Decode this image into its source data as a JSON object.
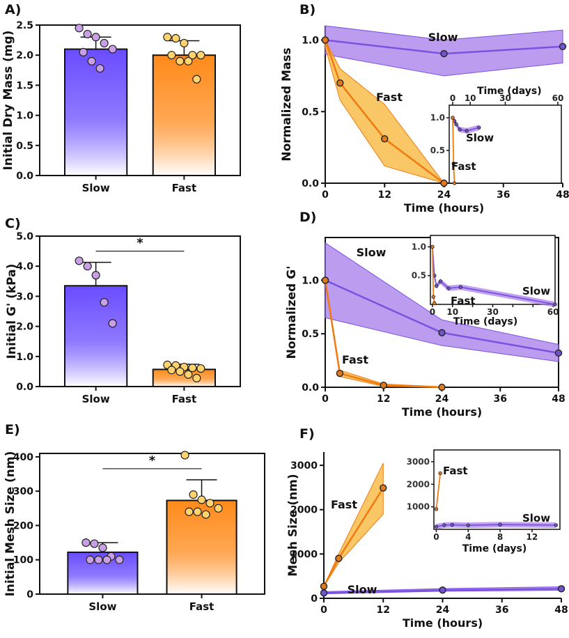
{
  "colors": {
    "slow": "#6A4CFF",
    "slowLine": "#7B52E0",
    "slowBand": "#A57BEA",
    "slowDot": "#C9A0E8",
    "fast": "#FF8A1A",
    "fastLine": "#F07A10",
    "fastBand": "#F8B93E",
    "fastDot": "#FFD36E"
  },
  "chart_data": [
    {
      "panel": "A)",
      "type": "bar",
      "categories": [
        "Slow",
        "Fast"
      ],
      "ylabel": "Initial Dry Mass (mg)",
      "ylim": [
        0,
        2.5
      ],
      "yticks": [
        0,
        0.5,
        1.0,
        1.5,
        2.0,
        2.5
      ],
      "ytick_labels": [
        "0.0",
        "0.5",
        "1.0",
        "1.5",
        "2.0",
        "2.5"
      ],
      "values": [
        2.1,
        2.0
      ],
      "errors": [
        0.2,
        0.24
      ],
      "points": [
        [
          2.45,
          2.35,
          2.3,
          2.2,
          2.1,
          2.05,
          1.9,
          1.78
        ],
        [
          2.3,
          2.28,
          2.2,
          2.0,
          2.0,
          2.0,
          1.9,
          1.9,
          1.6
        ]
      ],
      "significance": null
    },
    {
      "panel": "B)",
      "type": "line",
      "xlabel": "Time (hours)",
      "ylabel": "Normalized Mass",
      "xlim": [
        0,
        48
      ],
      "xticks": [
        0,
        12,
        24,
        36,
        48
      ],
      "ylim": [
        0,
        1.1
      ],
      "yticks": [
        0,
        0.5,
        1.0
      ],
      "ytick_labels": [
        "0.0",
        "0.5",
        "1.0"
      ],
      "series": [
        {
          "name": "Slow",
          "x": [
            0,
            24,
            48
          ],
          "y": [
            1.0,
            0.905,
            0.955
          ],
          "upper": [
            1.1,
            1.0,
            1.07
          ],
          "lower": [
            0.9,
            0.75,
            0.84
          ]
        },
        {
          "name": "Fast",
          "x": [
            0,
            3,
            12,
            24
          ],
          "y": [
            1.0,
            0.7,
            0.31,
            0.0
          ],
          "upper": [
            1.0,
            0.8,
            0.55,
            0.0
          ],
          "lower": [
            0.95,
            0.58,
            0.12,
            0.0
          ]
        }
      ],
      "inset": {
        "xlabel": "Time (days)",
        "xticks": [
          0,
          10,
          30,
          60
        ],
        "yticks": [
          0.5,
          1.0
        ],
        "ytick_labels": [
          "0.5",
          "1.0"
        ],
        "xlim": [
          -2,
          62
        ],
        "ylim": [
          0,
          1.15
        ],
        "series": [
          {
            "name": "Slow",
            "x": [
              0,
              1,
              2,
              4,
              8,
              15
            ],
            "y": [
              1.0,
              0.95,
              0.9,
              0.82,
              0.8,
              0.85
            ]
          },
          {
            "name": "Fast",
            "x": [
              0,
              0.5,
              1
            ],
            "y": [
              1.0,
              0.3,
              0.0
            ]
          }
        ]
      }
    },
    {
      "panel": "C)",
      "type": "bar",
      "categories": [
        "Slow",
        "Fast"
      ],
      "ylabel": "Initial G' (kPa)",
      "ylim": [
        0,
        5
      ],
      "yticks": [
        0,
        1,
        2,
        3,
        4,
        5
      ],
      "ytick_labels": [
        "0.0",
        "1.0",
        "2.0",
        "3.0",
        "4.0",
        "5.0"
      ],
      "values": [
        3.35,
        0.57
      ],
      "errors": [
        0.78,
        0.17
      ],
      "points": [
        [
          4.18,
          4.0,
          3.7,
          2.8,
          2.1
        ],
        [
          0.72,
          0.7,
          0.65,
          0.62,
          0.6,
          0.55,
          0.5,
          0.4,
          0.28
        ]
      ],
      "significance": "*"
    },
    {
      "panel": "D)",
      "type": "line",
      "xlabel": "Time (hours)",
      "ylabel": "Normalized G'",
      "xlim": [
        0,
        48
      ],
      "xticks": [
        0,
        12,
        24,
        36,
        48
      ],
      "ylim": [
        0,
        1.4
      ],
      "yticks": [
        0,
        0.5,
        1.0
      ],
      "ytick_labels": [
        "0.0",
        "0.5",
        "1.0"
      ],
      "series": [
        {
          "name": "Slow",
          "x": [
            0,
            24,
            48
          ],
          "y": [
            1.0,
            0.51,
            0.32
          ],
          "upper": [
            1.35,
            0.63,
            0.4
          ],
          "lower": [
            0.65,
            0.39,
            0.24
          ]
        },
        {
          "name": "Fast",
          "x": [
            0,
            3,
            12,
            24
          ],
          "y": [
            1.0,
            0.13,
            0.018,
            0.0
          ],
          "upper": [
            1.0,
            0.16,
            0.03,
            0.005
          ],
          "lower": [
            1.0,
            0.1,
            0.008,
            0.0
          ]
        }
      ],
      "inset": {
        "xlabel": "Time (days)",
        "xticks": [
          0,
          10,
          20,
          30,
          40,
          50,
          60
        ],
        "xtick_labels": [
          "0",
          "10",
          "",
          "30",
          "",
          "",
          "60"
        ],
        "yticks": [
          0.5,
          1.0
        ],
        "ytick_labels": [
          "0.5",
          "1.0"
        ],
        "xlim": [
          -1,
          61
        ],
        "ylim": [
          0,
          1.15
        ],
        "series": [
          {
            "name": "Slow",
            "x": [
              0,
              1,
              2,
              4,
              8,
              14,
              61
            ],
            "y": [
              1.0,
              0.5,
              0.32,
              0.4,
              0.28,
              0.3,
              0.0
            ]
          },
          {
            "name": "Fast",
            "x": [
              0,
              0.5,
              1
            ],
            "y": [
              1.0,
              0.13,
              0.02
            ]
          }
        ]
      }
    },
    {
      "panel": "E)",
      "type": "bar",
      "categories": [
        "Slow",
        "Fast"
      ],
      "ylabel": "Initial Mesh Size (nm)",
      "ylim": [
        0,
        410
      ],
      "yticks": [
        0,
        100,
        200,
        300,
        400
      ],
      "ytick_labels": [
        "0",
        "100",
        "200",
        "300",
        "400"
      ],
      "values": [
        122,
        273
      ],
      "errors": [
        28,
        60
      ],
      "points": [
        [
          150,
          147,
          135,
          110,
          100,
          100,
          100,
          100
        ],
        [
          405,
          290,
          275,
          265,
          250,
          240,
          240,
          232
        ]
      ],
      "significance": "*"
    },
    {
      "panel": "F)",
      "type": "line",
      "xlabel": "Time (hours)",
      "ylabel": "Mesh Size (nm)",
      "xlim": [
        0,
        48
      ],
      "xticks": [
        0,
        12,
        24,
        36,
        48
      ],
      "ylim": [
        0,
        3300
      ],
      "yticks": [
        0,
        1000,
        2000,
        3000
      ],
      "ytick_labels": [
        "0",
        "1000",
        "2000",
        "3000"
      ],
      "series": [
        {
          "name": "Fast",
          "x": [
            0,
            3,
            12
          ],
          "y": [
            270,
            900,
            2490
          ],
          "upper": [
            270,
            1000,
            3050
          ],
          "lower": [
            270,
            800,
            1900
          ]
        },
        {
          "name": "Slow",
          "x": [
            0,
            24,
            48
          ],
          "y": [
            120,
            185,
            215
          ],
          "upper": [
            150,
            220,
            260
          ],
          "lower": [
            100,
            160,
            180
          ]
        }
      ],
      "inset": {
        "xlabel": "Time (days)",
        "xticks": [
          0,
          4,
          8,
          12
        ],
        "yticks": [
          1000,
          2000,
          3000
        ],
        "ytick_labels": [
          "1000",
          "2000",
          "3000"
        ],
        "xlim": [
          -0.3,
          15.5
        ],
        "ylim": [
          0,
          3400
        ],
        "series": [
          {
            "name": "Fast",
            "x": [
              0,
              0.5
            ],
            "y": [
              900,
              2490
            ]
          },
          {
            "name": "Slow",
            "x": [
              0,
              1,
              2,
              4,
              8,
              15
            ],
            "y": [
              120,
              185,
              200,
              180,
              210,
              185
            ]
          }
        ]
      }
    }
  ]
}
